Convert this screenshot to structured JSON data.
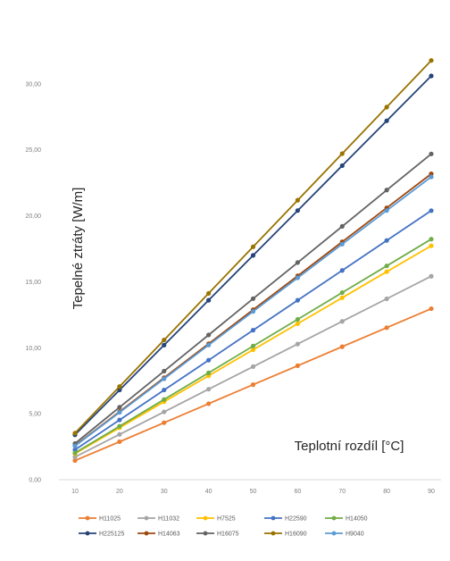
{
  "chart_data": {
    "type": "line",
    "title": "",
    "xlabel": "Teplotní rozdíl [°C]",
    "ylabel": "Tepelné ztráty [W/m]",
    "x": [
      10,
      20,
      30,
      40,
      50,
      60,
      70,
      80,
      90
    ],
    "ylim": [
      0,
      35
    ],
    "y_ticks": [
      "0,00",
      "5,00",
      "10,00",
      "15,00",
      "20,00",
      "25,00",
      "30,00"
    ],
    "x_ticks": [
      "10",
      "20",
      "30",
      "40",
      "50",
      "60",
      "70",
      "80",
      "90"
    ],
    "grid": false,
    "legend_position": "bottom",
    "series": [
      {
        "name": "H11025",
        "color": "#ed7d31",
        "values": [
          1.45,
          2.88,
          4.32,
          5.76,
          7.2,
          8.64,
          10.08,
          11.52,
          12.96
        ]
      },
      {
        "name": "H11032",
        "color": "#a5a5a5",
        "values": [
          1.72,
          3.43,
          5.14,
          6.86,
          8.57,
          10.28,
          12.0,
          13.71,
          15.42
        ]
      },
      {
        "name": "H7525",
        "color": "#ffc000",
        "values": [
          1.97,
          3.94,
          5.91,
          7.88,
          9.85,
          11.82,
          13.79,
          15.76,
          17.73
        ]
      },
      {
        "name": "H22590",
        "color": "#4472c4",
        "values": [
          2.27,
          4.53,
          6.8,
          9.06,
          11.33,
          13.6,
          15.86,
          18.13,
          20.39
        ]
      },
      {
        "name": "H14050",
        "color": "#70ad47",
        "values": [
          2.03,
          4.05,
          6.08,
          8.1,
          10.13,
          12.15,
          14.18,
          16.2,
          18.23
        ]
      },
      {
        "name": "H225125",
        "color": "#264478",
        "values": [
          3.4,
          6.8,
          10.2,
          13.6,
          17.0,
          20.4,
          23.8,
          27.2,
          30.6
        ]
      },
      {
        "name": "H14063",
        "color": "#9e480e",
        "values": [
          2.58,
          5.15,
          7.73,
          10.3,
          12.88,
          15.45,
          18.03,
          20.6,
          23.18
        ]
      },
      {
        "name": "H16075",
        "color": "#636363",
        "values": [
          2.74,
          5.49,
          8.23,
          10.97,
          13.72,
          16.46,
          19.2,
          21.95,
          24.69
        ]
      },
      {
        "name": "H16090",
        "color": "#997300",
        "values": [
          3.53,
          7.06,
          10.59,
          14.12,
          17.65,
          21.18,
          24.71,
          28.24,
          31.77
        ]
      },
      {
        "name": "H9040",
        "color": "#5b9bd5",
        "values": [
          2.55,
          5.1,
          7.65,
          10.2,
          12.75,
          15.3,
          17.85,
          20.4,
          22.95
        ]
      }
    ]
  }
}
